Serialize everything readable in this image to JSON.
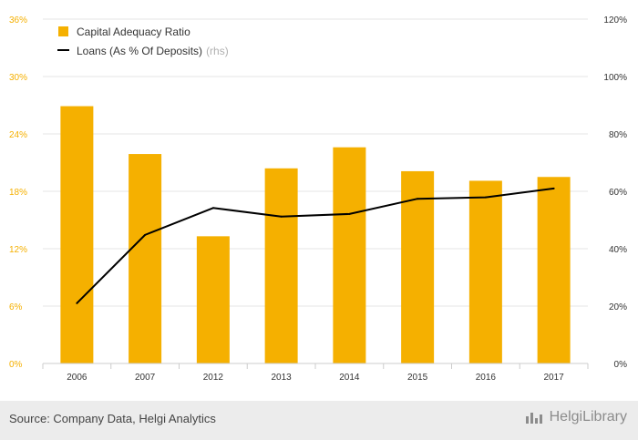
{
  "chart_data": {
    "type": "bar",
    "categories": [
      "2006",
      "2007",
      "2012",
      "2013",
      "2014",
      "2015",
      "2016",
      "2017"
    ],
    "series": [
      {
        "name": "Capital Adequacy Ratio",
        "type": "bar",
        "axis": "left",
        "color": "#f5b000",
        "values": [
          26.9,
          21.9,
          13.3,
          20.4,
          22.6,
          20.1,
          19.1,
          19.5
        ]
      },
      {
        "name": "Loans (As % Of Deposits)",
        "type": "line",
        "axis": "right",
        "color": "#000000",
        "values": [
          21.0,
          44.8,
          54.2,
          51.2,
          52.1,
          57.4,
          57.9,
          61.0
        ]
      }
    ],
    "legend_suffix": "(rhs)",
    "y_left": {
      "min": 0,
      "max": 36,
      "ticks": [
        "0%",
        "6%",
        "12%",
        "18%",
        "24%",
        "30%",
        "36%"
      ],
      "tick_color": "#f5b000"
    },
    "y_right": {
      "min": 0,
      "max": 120,
      "ticks": [
        "0%",
        "20%",
        "40%",
        "60%",
        "80%",
        "100%",
        "120%"
      ]
    },
    "grid": true,
    "legend_position": "top-left"
  },
  "footer": {
    "source": "Source: Company Data, Helgi Analytics",
    "logo": "HelgiLibrary"
  }
}
